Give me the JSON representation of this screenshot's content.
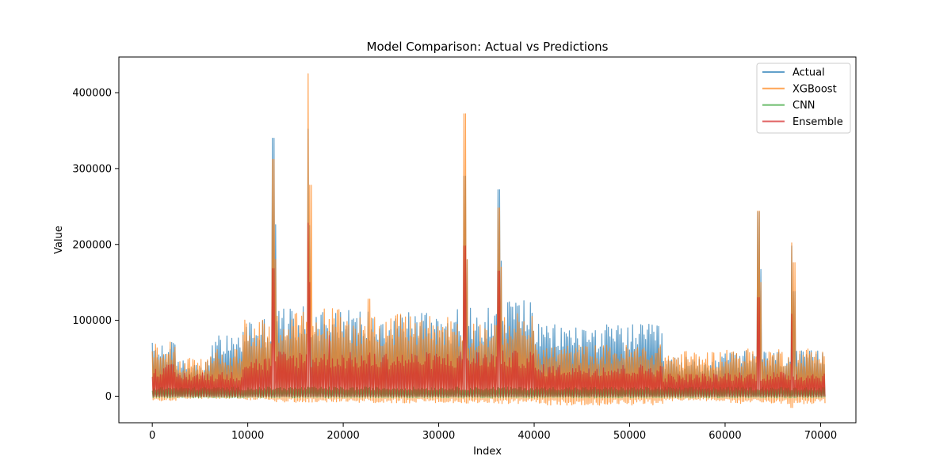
{
  "chart_data": {
    "type": "line",
    "title": "Model Comparison: Actual vs Predictions",
    "xlabel": "Index",
    "ylabel": "Value",
    "xlim": [
      -3500,
      73700
    ],
    "ylim": [
      -35000,
      447000
    ],
    "xticks": [
      0,
      10000,
      20000,
      30000,
      40000,
      50000,
      60000,
      70000
    ],
    "yticks": [
      0,
      100000,
      200000,
      300000,
      400000
    ],
    "n_points": 70400,
    "legend": {
      "position": "top-right"
    },
    "series": [
      {
        "name": "Actual",
        "color": "#1f77b4",
        "segments": [
          {
            "x": [
              0,
              2500
            ],
            "low": 0,
            "high": 72000
          },
          {
            "x": [
              2500,
              6000
            ],
            "low": 0,
            "high": 48000
          },
          {
            "x": [
              6000,
              9500
            ],
            "low": 0,
            "high": 80000
          },
          {
            "x": [
              9500,
              12500
            ],
            "low": 0,
            "high": 105000
          },
          {
            "x": [
              12500,
              18000
            ],
            "low": 0,
            "high": 118000
          },
          {
            "x": [
              18000,
              20000
            ],
            "low": 0,
            "high": 125000
          },
          {
            "x": [
              20000,
              32000
            ],
            "low": 0,
            "high": 115000
          },
          {
            "x": [
              32000,
              36000
            ],
            "low": 0,
            "high": 118000
          },
          {
            "x": [
              36000,
              40000
            ],
            "low": 0,
            "high": 132000
          },
          {
            "x": [
              40000,
              53500
            ],
            "low": 0,
            "high": 95000
          },
          {
            "x": [
              53500,
              60000
            ],
            "low": 0,
            "high": 52000
          },
          {
            "x": [
              60000,
              70400
            ],
            "low": 0,
            "high": 60000
          }
        ],
        "spikes": [
          [
            12700,
            340000
          ],
          [
            12950,
            226000
          ],
          [
            16300,
            352000
          ],
          [
            16500,
            225000
          ],
          [
            32700,
            290000
          ],
          [
            32900,
            180000
          ],
          [
            36300,
            272000
          ],
          [
            36500,
            178000
          ],
          [
            63500,
            243000
          ],
          [
            63700,
            167000
          ],
          [
            67000,
            198000
          ],
          [
            67200,
            138000
          ]
        ]
      },
      {
        "name": "XGBoost",
        "color": "#ff7f0e",
        "segments": [
          {
            "x": [
              0,
              2500
            ],
            "low": -6000,
            "high": 78000
          },
          {
            "x": [
              2500,
              6000
            ],
            "low": -3000,
            "high": 50000
          },
          {
            "x": [
              6000,
              9500
            ],
            "low": -3000,
            "high": 62000
          },
          {
            "x": [
              9500,
              12500
            ],
            "low": -5000,
            "high": 105000
          },
          {
            "x": [
              12500,
              18000
            ],
            "low": -8000,
            "high": 112000
          },
          {
            "x": [
              18000,
              20000
            ],
            "low": -8000,
            "high": 118000
          },
          {
            "x": [
              20000,
              32000
            ],
            "low": -9000,
            "high": 108000
          },
          {
            "x": [
              32000,
              36000
            ],
            "low": -9000,
            "high": 100000
          },
          {
            "x": [
              36000,
              40000
            ],
            "low": -10000,
            "high": 110000
          },
          {
            "x": [
              40000,
              53500
            ],
            "low": -12000,
            "high": 68000
          },
          {
            "x": [
              53500,
              60000
            ],
            "low": -6000,
            "high": 60000
          },
          {
            "x": [
              60000,
              70400
            ],
            "low": -10000,
            "high": 64000
          }
        ],
        "spikes": [
          [
            12700,
            312000
          ],
          [
            12950,
            180000
          ],
          [
            16300,
            425000
          ],
          [
            16550,
            278000
          ],
          [
            22700,
            128000
          ],
          [
            32700,
            372000
          ],
          [
            32950,
            180000
          ],
          [
            36300,
            248000
          ],
          [
            36500,
            170000
          ],
          [
            63500,
            244000
          ],
          [
            63700,
            150000
          ],
          [
            67000,
            202000
          ],
          [
            67200,
            176000
          ],
          [
            66900,
            -15000
          ]
        ]
      },
      {
        "name": "CNN",
        "color": "#2ca02c",
        "segments": [
          {
            "x": [
              0,
              70400
            ],
            "low": -2000,
            "high": 12000
          }
        ],
        "spikes": []
      },
      {
        "name": "Ensemble",
        "color": "#d62728",
        "segments": [
          {
            "x": [
              0,
              2500
            ],
            "low": 0,
            "high": 42000
          },
          {
            "x": [
              2500,
              9500
            ],
            "low": 0,
            "high": 32000
          },
          {
            "x": [
              9500,
              12500
            ],
            "low": 0,
            "high": 52000
          },
          {
            "x": [
              12500,
              20000
            ],
            "low": 0,
            "high": 60000
          },
          {
            "x": [
              20000,
              32000
            ],
            "low": 0,
            "high": 58000
          },
          {
            "x": [
              32000,
              40000
            ],
            "low": 0,
            "high": 60000
          },
          {
            "x": [
              40000,
              53500
            ],
            "low": 0,
            "high": 42000
          },
          {
            "x": [
              53500,
              60000
            ],
            "low": 0,
            "high": 30000
          },
          {
            "x": [
              60000,
              70400
            ],
            "low": 0,
            "high": 32000
          }
        ],
        "spikes": [
          [
            12700,
            168000
          ],
          [
            16300,
            228000
          ],
          [
            16500,
            150000
          ],
          [
            18500,
            80000
          ],
          [
            32700,
            198000
          ],
          [
            36300,
            165000
          ],
          [
            63500,
            130000
          ],
          [
            67000,
            108000
          ]
        ]
      }
    ]
  }
}
